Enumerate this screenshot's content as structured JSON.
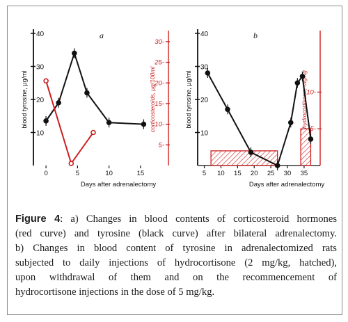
{
  "chart_data": [
    {
      "panel_label": "a",
      "type": "line",
      "xlabel": "Days after adrenalectomy",
      "ylabel_left": "blood tyrosine, μg/ml",
      "ylabel_right": "corticosteroids, μg/100ml",
      "x_ticks": [
        "0",
        "5",
        "10",
        "15"
      ],
      "y_left_ticks": [
        "10",
        "20",
        "30",
        "40"
      ],
      "y_right_ticks": [
        "5",
        "10",
        "15",
        "20",
        "25",
        "30"
      ],
      "xlim": [
        -2,
        17
      ],
      "ylim_left": [
        0,
        40
      ],
      "ylim_right": [
        0,
        32
      ],
      "series": [
        {
          "axis": "left",
          "color": "#111111",
          "x": [
            0,
            2,
            4.5,
            6.5,
            10,
            15.5
          ],
          "y": [
            13.5,
            19,
            34,
            22,
            13,
            12.5
          ]
        },
        {
          "axis": "right",
          "color": "#cc1f1f",
          "x": [
            0,
            4,
            7.5
          ],
          "y": [
            20.5,
            0.5,
            8
          ]
        }
      ]
    },
    {
      "panel_label": "b",
      "type": "line",
      "xlabel": "Days after adrenalectomy",
      "ylabel_left": "blood tyrosine, μg/ml",
      "ylabel_right": "hydrocortisone, mg/kg",
      "x_ticks": [
        "5",
        "10",
        "15",
        "20",
        "25",
        "30",
        "35"
      ],
      "y_left_ticks": [
        "10",
        "20",
        "30",
        "40"
      ],
      "y_right_ticks": [
        "5",
        "10"
      ],
      "xlim": [
        3,
        39
      ],
      "ylim_left": [
        0,
        40
      ],
      "ylim_right": [
        0,
        18
      ],
      "series": [
        {
          "axis": "left",
          "color": "#111111",
          "x": [
            6,
            12,
            19,
            27,
            31,
            33,
            34.5,
            37
          ],
          "y": [
            28,
            17,
            4,
            0,
            13,
            25,
            27,
            8
          ]
        }
      ],
      "hatched_blocks": [
        {
          "x_start": 7,
          "x_end": 27,
          "value": 2
        },
        {
          "x_start": 34,
          "x_end": 37,
          "value": 5
        }
      ]
    }
  ],
  "caption": {
    "label": "Figure 4",
    "line1": ": a) Changes in blood contents of corticosteroid hormones",
    "line2": "(red curve) and tyrosine (black curve) after bilateral adrenalectomy.",
    "line3": "b) Changes in blood content of tyrosine in adrenalectomized rats",
    "line4": "subjected to daily injections of hydrocortisone (2 mg/kg, hatched),",
    "line5": "upon withdrawal of them and on the recommencement of",
    "line6": "hydrocortisone injections in the dose of 5 mg/kg."
  }
}
